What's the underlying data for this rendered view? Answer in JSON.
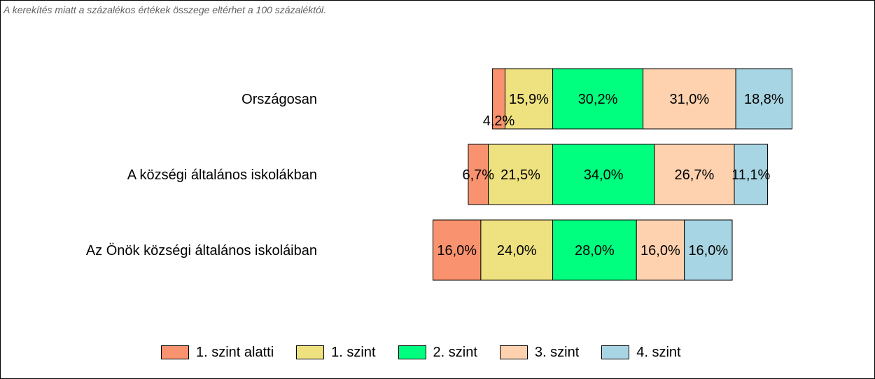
{
  "note": "A kerekítés miatt a  százalékos értékek összege eltérhet a 100 százaléktól.",
  "chart_data": {
    "type": "bar",
    "orientation": "horizontal",
    "stacked": true,
    "centered": true,
    "categories": [
      "Országosan",
      "A községi általános iskolákban",
      "Az Önök községi általános iskoláiban"
    ],
    "series": [
      {
        "name": "1. szint alatti",
        "color": "#F9926F",
        "values": [
          4.2,
          6.7,
          16.0
        ],
        "labels": [
          "4,2%",
          "6,7%",
          "16,0%"
        ]
      },
      {
        "name": "1. szint",
        "color": "#EEE17F",
        "values": [
          15.9,
          21.5,
          24.0
        ],
        "labels": [
          "15,9%",
          "21,5%",
          "24,0%"
        ]
      },
      {
        "name": "2. szint",
        "color": "#00FF7F",
        "values": [
          30.2,
          34.0,
          28.0
        ],
        "labels": [
          "30,2%",
          "34,0%",
          "28,0%"
        ]
      },
      {
        "name": "3. szint",
        "color": "#FFD2AF",
        "values": [
          31.0,
          26.7,
          16.0
        ],
        "labels": [
          "31,0%",
          "26,7%",
          "16,0%"
        ]
      },
      {
        "name": "4. szint",
        "color": "#A8D5E3",
        "values": [
          18.8,
          11.1,
          16.0
        ],
        "labels": [
          "18,8%",
          "11,1%",
          "16,0%"
        ]
      }
    ],
    "legend_position": "bottom"
  }
}
